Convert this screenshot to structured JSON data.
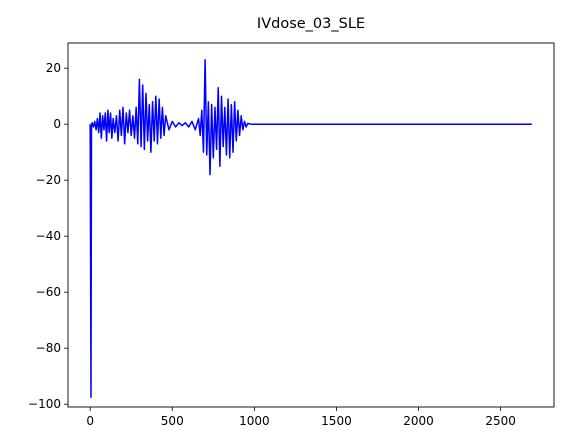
{
  "chart_data": {
    "type": "line",
    "title": "IVdose_03_SLE",
    "xlabel": "",
    "ylabel": "",
    "xlim": [
      -135,
      2825
    ],
    "ylim": [
      -101,
      29
    ],
    "x_ticks": [
      0,
      500,
      1000,
      1500,
      2000,
      2500
    ],
    "x_tick_labels": [
      "0",
      "500",
      "1000",
      "1500",
      "2000",
      "2500"
    ],
    "y_ticks": [
      20,
      0,
      -20,
      -40,
      -60,
      -80,
      -100
    ],
    "y_tick_labels": [
      "20",
      "0",
      "−20",
      "−40",
      "−60",
      "−80",
      "−100"
    ],
    "grid": false,
    "legend": "none",
    "series": [
      {
        "color": "#0000ff",
        "x": [
          0,
          5,
          8,
          12,
          20,
          28,
          36,
          44,
          52,
          60,
          68,
          76,
          84,
          92,
          100,
          108,
          116,
          124,
          132,
          140,
          150,
          160,
          170,
          180,
          190,
          200,
          210,
          220,
          230,
          240,
          250,
          260,
          270,
          280,
          290,
          300,
          310,
          320,
          330,
          340,
          350,
          360,
          370,
          380,
          390,
          400,
          410,
          420,
          430,
          440,
          450,
          460,
          480,
          500,
          520,
          540,
          560,
          580,
          600,
          620,
          640,
          660,
          670,
          680,
          690,
          700,
          710,
          720,
          730,
          740,
          750,
          760,
          770,
          780,
          790,
          800,
          810,
          820,
          830,
          840,
          850,
          860,
          870,
          880,
          890,
          900,
          910,
          920,
          930,
          940,
          950,
          960,
          980,
          1000,
          1050,
          1100,
          1200,
          1400,
          1600,
          1800,
          2000,
          2200,
          2400,
          2600,
          2690
        ],
        "y": [
          0,
          -97.5,
          0,
          0.5,
          -1,
          1,
          -2,
          2,
          -3,
          4,
          -5,
          3,
          -2,
          4,
          -6,
          5,
          -3,
          4,
          -5,
          2,
          -3,
          3,
          -6,
          5,
          -4,
          6,
          -7,
          4,
          -3,
          5,
          -4,
          3,
          -5,
          6,
          -7,
          16,
          -8,
          14,
          -9,
          11,
          -6,
          7,
          -10,
          8,
          -6,
          10,
          -7,
          9,
          -5,
          6,
          -4,
          3,
          -2,
          1,
          -1,
          0.5,
          -0.5,
          0.5,
          -1,
          1,
          -2,
          2,
          -4,
          5,
          -10,
          23,
          -11,
          8,
          -18,
          7,
          -12,
          6,
          -9,
          13,
          -15,
          10,
          -8,
          6,
          -11,
          9,
          -12,
          7,
          -10,
          8,
          -6,
          5,
          -4,
          3,
          -2,
          1,
          -1,
          0.3,
          0,
          0,
          0,
          0,
          0,
          0,
          0,
          0,
          0,
          0,
          0,
          0,
          0
        ]
      }
    ]
  }
}
